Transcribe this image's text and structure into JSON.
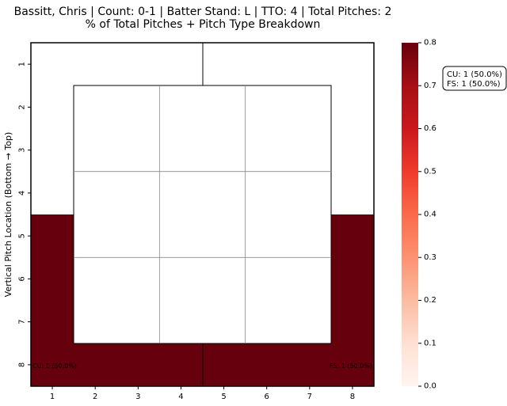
{
  "chart_data": {
    "type": "heatmap",
    "title": "Bassitt, Chris | Count: 0-1 | Batter Stand: L | TTO: 4 | Total Pitches: 2",
    "subtitle": "% of Total Pitches + Pitch Type Breakdown",
    "ylabel": "Vertical Pitch Location (Bottom → Top)",
    "x_ticks": [
      "1",
      "2",
      "3",
      "4",
      "5",
      "6",
      "7",
      "8"
    ],
    "y_ticks": [
      "1",
      "2",
      "3",
      "4",
      "5",
      "6",
      "7",
      "8"
    ],
    "colorbar": {
      "min": 0.0,
      "max": 0.8,
      "ticks": [
        "0.0",
        "0.1",
        "0.2",
        "0.3",
        "0.4",
        "0.5",
        "0.6",
        "0.7",
        "0.8"
      ],
      "colormap": "Reds",
      "low_color": "#fff5f0",
      "high_color": "#67000d"
    },
    "regions": [
      {
        "name": "left",
        "value": 0.5,
        "annotation": "CU: 1 (50.0%)"
      },
      {
        "name": "right",
        "value": 0.5,
        "annotation": "FS: 1 (50.0%)"
      }
    ],
    "legend_lines": [
      "CU: 1 (50.0%)",
      "FS: 1 (50.0%)"
    ],
    "strike_zone": {
      "cols": 3,
      "rows": 3
    }
  }
}
